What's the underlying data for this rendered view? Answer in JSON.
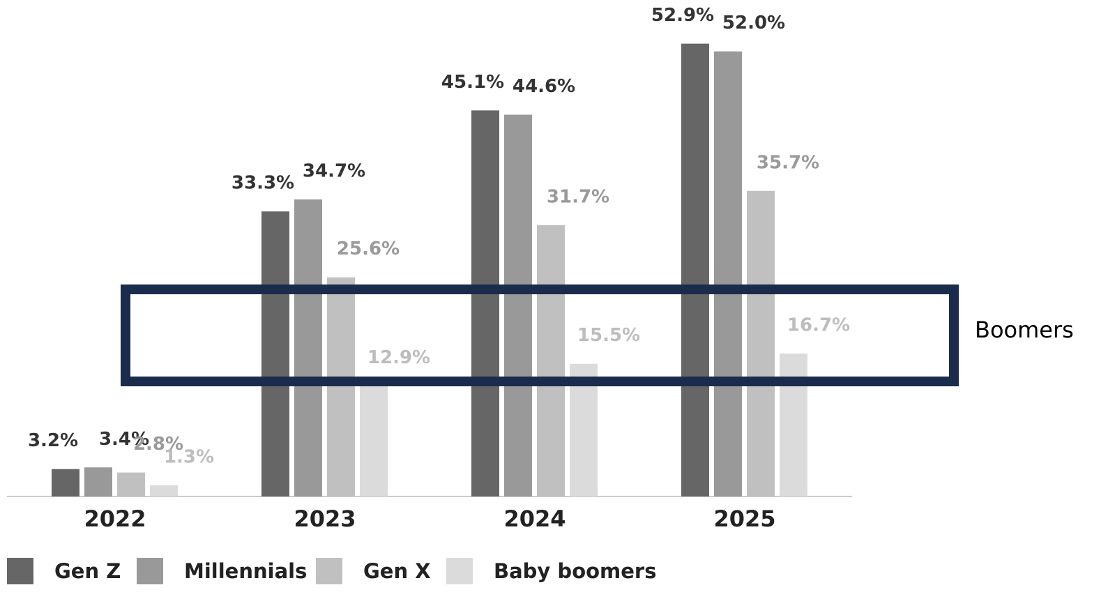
{
  "chart_data": {
    "type": "bar",
    "categories": [
      "2022",
      "2023",
      "2024",
      "2025"
    ],
    "series": [
      {
        "name": "Gen Z",
        "color": "#666666",
        "label_color": "#333333",
        "values": [
          3.2,
          33.3,
          45.1,
          52.9
        ],
        "value_labels": [
          "3.2%",
          "33.3%",
          "45.1%",
          "52.9%"
        ]
      },
      {
        "name": "Millennials",
        "color": "#999999",
        "label_color": "#333333",
        "values": [
          3.4,
          34.7,
          44.6,
          52.0
        ],
        "value_labels": [
          "3.4%",
          "34.7%",
          "44.6%",
          "52.0%"
        ]
      },
      {
        "name": "Gen X",
        "color": "#c0c0c0",
        "label_color": "#9a9a9a",
        "values": [
          2.8,
          25.6,
          31.7,
          35.7
        ],
        "value_labels": [
          "2.8%",
          "25.6%",
          "31.7%",
          "35.7%"
        ]
      },
      {
        "name": "Baby boomers",
        "color": "#dcdbdc",
        "label_color": "#bdbdbd",
        "values": [
          1.3,
          12.9,
          15.5,
          16.7
        ],
        "value_labels": [
          "1.3%",
          "12.9%",
          "15.5%",
          "16.7%"
        ]
      }
    ],
    "ylim": [
      0,
      58
    ],
    "annotation": "Boomers"
  }
}
